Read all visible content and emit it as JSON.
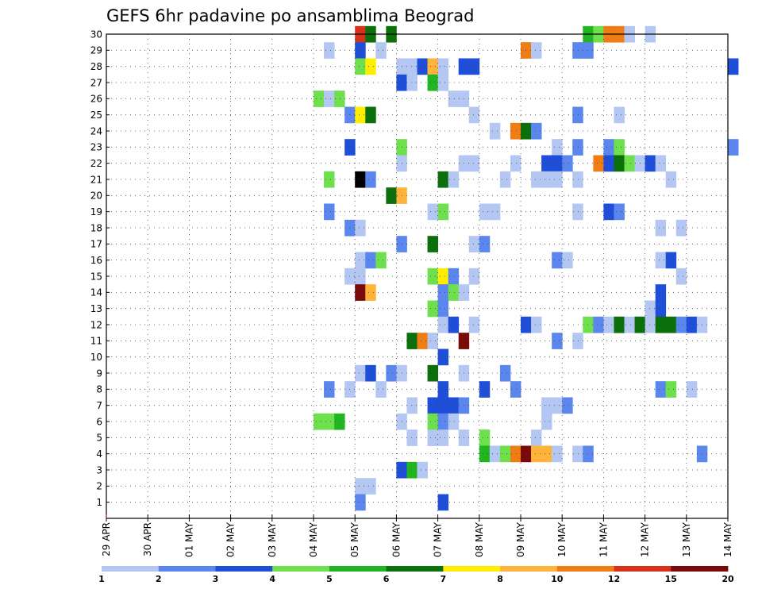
{
  "chart_data": {
    "type": "heatmap",
    "title": "GEFS 6hr padavine po ansamblima Beograd",
    "x_ticks": [
      "29 APR",
      "30 APR",
      "01 MAY",
      "02 MAY",
      "03 MAY",
      "04 MAY",
      "05 MAY",
      "06 MAY",
      "07 MAY",
      "08 MAY",
      "09 MAY",
      "10 MAY",
      "11 MAY",
      "12 MAY",
      "13 MAY",
      "14 MAY"
    ],
    "y_ticks": [
      "1",
      "2",
      "3",
      "4",
      "5",
      "6",
      "7",
      "8",
      "9",
      "10",
      "11",
      "12",
      "13",
      "14",
      "15",
      "16",
      "17",
      "18",
      "19",
      "20",
      "21",
      "22",
      "23",
      "24",
      "25",
      "26",
      "27",
      "28",
      "29",
      "30"
    ],
    "x_range": [
      "29 APR 00Z",
      "14 MAY 00Z"
    ],
    "time_step_hours": 6,
    "y_range": [
      0,
      30
    ],
    "grid": true,
    "colorbar": {
      "labels": [
        "1",
        "2",
        "3",
        "4",
        "5",
        "6",
        "7",
        "8",
        "10",
        "12",
        "15",
        "20"
      ],
      "colors": [
        "#b4c7f2",
        "#5a86ee",
        "#1f4fd8",
        "#6ee04e",
        "#21b521",
        "#0b6f0b",
        "#ffee00",
        "#ffb33a",
        "#f07d14",
        "#d8311a",
        "#7a0a0a"
      ]
    },
    "cells": [
      {
        "m": 30,
        "s": 24,
        "c": 10
      },
      {
        "m": 30,
        "s": 25,
        "c": 6
      },
      {
        "m": 30,
        "s": 27,
        "c": 6
      },
      {
        "m": 30,
        "s": 46,
        "c": 5
      },
      {
        "m": 30,
        "s": 47,
        "c": 4
      },
      {
        "m": 30,
        "s": 48,
        "c": 9
      },
      {
        "m": 30,
        "s": 49,
        "c": 9
      },
      {
        "m": 30,
        "s": 50,
        "c": 1
      },
      {
        "m": 30,
        "s": 52,
        "c": 1
      },
      {
        "m": 29,
        "s": 21,
        "c": 1
      },
      {
        "m": 29,
        "s": 24,
        "c": 3
      },
      {
        "m": 29,
        "s": 26,
        "c": 1
      },
      {
        "m": 29,
        "s": 40,
        "c": 9
      },
      {
        "m": 29,
        "s": 41,
        "c": 1
      },
      {
        "m": 29,
        "s": 45,
        "c": 2
      },
      {
        "m": 29,
        "s": 46,
        "c": 2
      },
      {
        "m": 28,
        "s": 24,
        "c": 4
      },
      {
        "m": 28,
        "s": 25,
        "c": 7
      },
      {
        "m": 28,
        "s": 28,
        "c": 1
      },
      {
        "m": 28,
        "s": 29,
        "c": 1
      },
      {
        "m": 28,
        "s": 30,
        "c": 3
      },
      {
        "m": 28,
        "s": 31,
        "c": 8
      },
      {
        "m": 28,
        "s": 32,
        "c": 1
      },
      {
        "m": 28,
        "s": 34,
        "c": 3
      },
      {
        "m": 28,
        "s": 35,
        "c": 3
      },
      {
        "m": 28,
        "s": 60,
        "c": 3
      },
      {
        "m": 27,
        "s": 28,
        "c": 3
      },
      {
        "m": 27,
        "s": 29,
        "c": 1
      },
      {
        "m": 27,
        "s": 31,
        "c": 5
      },
      {
        "m": 27,
        "s": 32,
        "c": 1
      },
      {
        "m": 26,
        "s": 20,
        "c": 4
      },
      {
        "m": 26,
        "s": 21,
        "c": 1
      },
      {
        "m": 26,
        "s": 22,
        "c": 4
      },
      {
        "m": 26,
        "s": 33,
        "c": 1
      },
      {
        "m": 26,
        "s": 34,
        "c": 1
      },
      {
        "m": 25,
        "s": 23,
        "c": 2
      },
      {
        "m": 25,
        "s": 24,
        "c": 7
      },
      {
        "m": 25,
        "s": 25,
        "c": 6
      },
      {
        "m": 25,
        "s": 35,
        "c": 1
      },
      {
        "m": 25,
        "s": 45,
        "c": 2
      },
      {
        "m": 25,
        "s": 49,
        "c": 1
      },
      {
        "m": 24,
        "s": 37,
        "c": 1
      },
      {
        "m": 24,
        "s": 39,
        "c": 9
      },
      {
        "m": 24,
        "s": 40,
        "c": 6
      },
      {
        "m": 24,
        "s": 41,
        "c": 2
      },
      {
        "m": 23,
        "s": 23,
        "c": 3
      },
      {
        "m": 23,
        "s": 28,
        "c": 4
      },
      {
        "m": 23,
        "s": 43,
        "c": 1
      },
      {
        "m": 23,
        "s": 45,
        "c": 2
      },
      {
        "m": 23,
        "s": 48,
        "c": 2
      },
      {
        "m": 23,
        "s": 49,
        "c": 4
      },
      {
        "m": 23,
        "s": 60,
        "c": 2
      },
      {
        "m": 22,
        "s": 28,
        "c": 1
      },
      {
        "m": 22,
        "s": 34,
        "c": 1
      },
      {
        "m": 22,
        "s": 35,
        "c": 1
      },
      {
        "m": 22,
        "s": 39,
        "c": 1
      },
      {
        "m": 22,
        "s": 42,
        "c": 3
      },
      {
        "m": 22,
        "s": 43,
        "c": 3
      },
      {
        "m": 22,
        "s": 44,
        "c": 2
      },
      {
        "m": 22,
        "s": 47,
        "c": 9
      },
      {
        "m": 22,
        "s": 48,
        "c": 3
      },
      {
        "m": 22,
        "s": 49,
        "c": 6
      },
      {
        "m": 22,
        "s": 50,
        "c": 4
      },
      {
        "m": 22,
        "s": 51,
        "c": 1
      },
      {
        "m": 22,
        "s": 52,
        "c": 3
      },
      {
        "m": 22,
        "s": 53,
        "c": 1
      },
      {
        "m": 21,
        "s": 21,
        "c": 4
      },
      {
        "m": 21,
        "s": 24,
        "c": 12
      },
      {
        "m": 21,
        "s": 25,
        "c": 2
      },
      {
        "m": 21,
        "s": 32,
        "c": 6
      },
      {
        "m": 21,
        "s": 33,
        "c": 1
      },
      {
        "m": 21,
        "s": 38,
        "c": 1
      },
      {
        "m": 21,
        "s": 41,
        "c": 1
      },
      {
        "m": 21,
        "s": 42,
        "c": 1
      },
      {
        "m": 21,
        "s": 43,
        "c": 1
      },
      {
        "m": 21,
        "s": 45,
        "c": 1
      },
      {
        "m": 21,
        "s": 54,
        "c": 1
      },
      {
        "m": 20,
        "s": 27,
        "c": 6
      },
      {
        "m": 20,
        "s": 28,
        "c": 8
      },
      {
        "m": 19,
        "s": 21,
        "c": 2
      },
      {
        "m": 19,
        "s": 31,
        "c": 1
      },
      {
        "m": 19,
        "s": 32,
        "c": 4
      },
      {
        "m": 19,
        "s": 36,
        "c": 1
      },
      {
        "m": 19,
        "s": 37,
        "c": 1
      },
      {
        "m": 19,
        "s": 45,
        "c": 1
      },
      {
        "m": 19,
        "s": 48,
        "c": 3
      },
      {
        "m": 19,
        "s": 49,
        "c": 2
      },
      {
        "m": 18,
        "s": 23,
        "c": 2
      },
      {
        "m": 18,
        "s": 24,
        "c": 1
      },
      {
        "m": 18,
        "s": 53,
        "c": 1
      },
      {
        "m": 18,
        "s": 55,
        "c": 1
      },
      {
        "m": 17,
        "s": 28,
        "c": 2
      },
      {
        "m": 17,
        "s": 31,
        "c": 6
      },
      {
        "m": 17,
        "s": 35,
        "c": 1
      },
      {
        "m": 17,
        "s": 36,
        "c": 2
      },
      {
        "m": 16,
        "s": 24,
        "c": 1
      },
      {
        "m": 16,
        "s": 25,
        "c": 2
      },
      {
        "m": 16,
        "s": 26,
        "c": 4
      },
      {
        "m": 16,
        "s": 43,
        "c": 2
      },
      {
        "m": 16,
        "s": 44,
        "c": 1
      },
      {
        "m": 16,
        "s": 53,
        "c": 1
      },
      {
        "m": 16,
        "s": 54,
        "c": 3
      },
      {
        "m": 15,
        "s": 23,
        "c": 1
      },
      {
        "m": 15,
        "s": 24,
        "c": 1
      },
      {
        "m": 15,
        "s": 31,
        "c": 4
      },
      {
        "m": 15,
        "s": 32,
        "c": 7
      },
      {
        "m": 15,
        "s": 33,
        "c": 2
      },
      {
        "m": 15,
        "s": 35,
        "c": 1
      },
      {
        "m": 15,
        "s": 55,
        "c": 1
      },
      {
        "m": 14,
        "s": 24,
        "c": 11
      },
      {
        "m": 14,
        "s": 25,
        "c": 8
      },
      {
        "m": 14,
        "s": 32,
        "c": 2
      },
      {
        "m": 14,
        "s": 33,
        "c": 4
      },
      {
        "m": 14,
        "s": 34,
        "c": 1
      },
      {
        "m": 14,
        "s": 53,
        "c": 3
      },
      {
        "m": 13,
        "s": 31,
        "c": 4
      },
      {
        "m": 13,
        "s": 32,
        "c": 2
      },
      {
        "m": 13,
        "s": 52,
        "c": 1
      },
      {
        "m": 13,
        "s": 53,
        "c": 3
      },
      {
        "m": 12,
        "s": 32,
        "c": 1
      },
      {
        "m": 12,
        "s": 33,
        "c": 3
      },
      {
        "m": 12,
        "s": 35,
        "c": 1
      },
      {
        "m": 12,
        "s": 40,
        "c": 3
      },
      {
        "m": 12,
        "s": 41,
        "c": 1
      },
      {
        "m": 12,
        "s": 46,
        "c": 4
      },
      {
        "m": 12,
        "s": 47,
        "c": 2
      },
      {
        "m": 12,
        "s": 48,
        "c": 1
      },
      {
        "m": 12,
        "s": 49,
        "c": 6
      },
      {
        "m": 12,
        "s": 50,
        "c": 1
      },
      {
        "m": 12,
        "s": 51,
        "c": 6
      },
      {
        "m": 12,
        "s": 52,
        "c": 1
      },
      {
        "m": 12,
        "s": 53,
        "c": 6
      },
      {
        "m": 12,
        "s": 54,
        "c": 6
      },
      {
        "m": 12,
        "s": 55,
        "c": 2
      },
      {
        "m": 12,
        "s": 56,
        "c": 3
      },
      {
        "m": 12,
        "s": 57,
        "c": 1
      },
      {
        "m": 11,
        "s": 29,
        "c": 6
      },
      {
        "m": 11,
        "s": 30,
        "c": 9
      },
      {
        "m": 11,
        "s": 31,
        "c": 1
      },
      {
        "m": 11,
        "s": 34,
        "c": 11
      },
      {
        "m": 11,
        "s": 43,
        "c": 2
      },
      {
        "m": 11,
        "s": 45,
        "c": 1
      },
      {
        "m": 10,
        "s": 32,
        "c": 3
      },
      {
        "m": 9,
        "s": 24,
        "c": 1
      },
      {
        "m": 9,
        "s": 25,
        "c": 3
      },
      {
        "m": 9,
        "s": 27,
        "c": 2
      },
      {
        "m": 9,
        "s": 28,
        "c": 1
      },
      {
        "m": 9,
        "s": 31,
        "c": 6
      },
      {
        "m": 9,
        "s": 34,
        "c": 1
      },
      {
        "m": 9,
        "s": 38,
        "c": 2
      },
      {
        "m": 8,
        "s": 21,
        "c": 2
      },
      {
        "m": 8,
        "s": 23,
        "c": 1
      },
      {
        "m": 8,
        "s": 26,
        "c": 1
      },
      {
        "m": 8,
        "s": 32,
        "c": 3
      },
      {
        "m": 8,
        "s": 36,
        "c": 3
      },
      {
        "m": 8,
        "s": 39,
        "c": 2
      },
      {
        "m": 8,
        "s": 53,
        "c": 2
      },
      {
        "m": 8,
        "s": 54,
        "c": 4
      },
      {
        "m": 8,
        "s": 56,
        "c": 1
      },
      {
        "m": 7,
        "s": 29,
        "c": 1
      },
      {
        "m": 7,
        "s": 31,
        "c": 3
      },
      {
        "m": 7,
        "s": 32,
        "c": 3
      },
      {
        "m": 7,
        "s": 33,
        "c": 3
      },
      {
        "m": 7,
        "s": 34,
        "c": 2
      },
      {
        "m": 7,
        "s": 42,
        "c": 1
      },
      {
        "m": 7,
        "s": 43,
        "c": 1
      },
      {
        "m": 7,
        "s": 44,
        "c": 2
      },
      {
        "m": 6,
        "s": 20,
        "c": 4
      },
      {
        "m": 6,
        "s": 21,
        "c": 4
      },
      {
        "m": 6,
        "s": 22,
        "c": 5
      },
      {
        "m": 6,
        "s": 28,
        "c": 1
      },
      {
        "m": 6,
        "s": 31,
        "c": 4
      },
      {
        "m": 6,
        "s": 32,
        "c": 2
      },
      {
        "m": 6,
        "s": 33,
        "c": 1
      },
      {
        "m": 6,
        "s": 42,
        "c": 1
      },
      {
        "m": 5,
        "s": 29,
        "c": 1
      },
      {
        "m": 5,
        "s": 31,
        "c": 1
      },
      {
        "m": 5,
        "s": 32,
        "c": 1
      },
      {
        "m": 5,
        "s": 34,
        "c": 1
      },
      {
        "m": 5,
        "s": 36,
        "c": 4
      },
      {
        "m": 5,
        "s": 41,
        "c": 1
      },
      {
        "m": 4,
        "s": 36,
        "c": 5
      },
      {
        "m": 4,
        "s": 37,
        "c": 1
      },
      {
        "m": 4,
        "s": 38,
        "c": 4
      },
      {
        "m": 4,
        "s": 39,
        "c": 9
      },
      {
        "m": 4,
        "s": 40,
        "c": 11
      },
      {
        "m": 4,
        "s": 41,
        "c": 8
      },
      {
        "m": 4,
        "s": 42,
        "c": 8
      },
      {
        "m": 4,
        "s": 43,
        "c": 1
      },
      {
        "m": 4,
        "s": 45,
        "c": 1
      },
      {
        "m": 4,
        "s": 46,
        "c": 2
      },
      {
        "m": 4,
        "s": 57,
        "c": 2
      },
      {
        "m": 3,
        "s": 28,
        "c": 3
      },
      {
        "m": 3,
        "s": 29,
        "c": 5
      },
      {
        "m": 3,
        "s": 30,
        "c": 1
      },
      {
        "m": 2,
        "s": 24,
        "c": 1
      },
      {
        "m": 2,
        "s": 25,
        "c": 1
      },
      {
        "m": 1,
        "s": 24,
        "c": 2
      },
      {
        "m": 1,
        "s": 32,
        "c": 3
      }
    ]
  }
}
